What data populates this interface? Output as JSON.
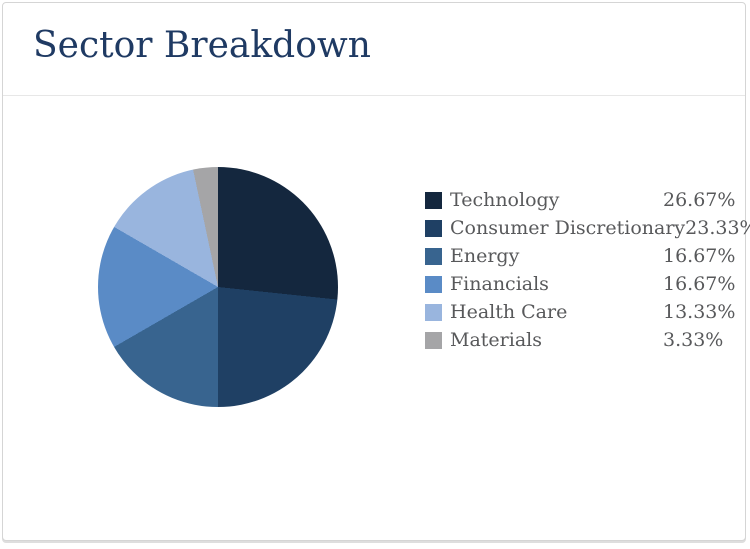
{
  "card": {
    "title": "Sector Breakdown"
  },
  "theme": {
    "background": "#FFFFFF",
    "card_border_color": "#D5D5D5",
    "divider_color": "#E7E7E7",
    "title_color": "#1F3A63",
    "legend_text_color": "#58595B"
  },
  "chart_data": {
    "type": "pie",
    "title": "Sector Breakdown",
    "start_angle_deg": 0,
    "direction": "clockwise",
    "legend_position": "right",
    "slices": [
      {
        "label": "Technology",
        "value": 26.67,
        "display": "26.67%",
        "color": "#14273E"
      },
      {
        "label": "Consumer Discretionary",
        "value": 23.33,
        "display": "23.33%",
        "color": "#1F4064"
      },
      {
        "label": "Energy",
        "value": 16.67,
        "display": "16.67%",
        "color": "#38648F"
      },
      {
        "label": "Financials",
        "value": 16.67,
        "display": "16.67%",
        "color": "#5A8BC6"
      },
      {
        "label": "Health Care",
        "value": 13.33,
        "display": "13.33%",
        "color": "#99B5DE"
      },
      {
        "label": "Materials",
        "value": 3.33,
        "display": "3.33%",
        "color": "#A5A5A7"
      }
    ]
  }
}
